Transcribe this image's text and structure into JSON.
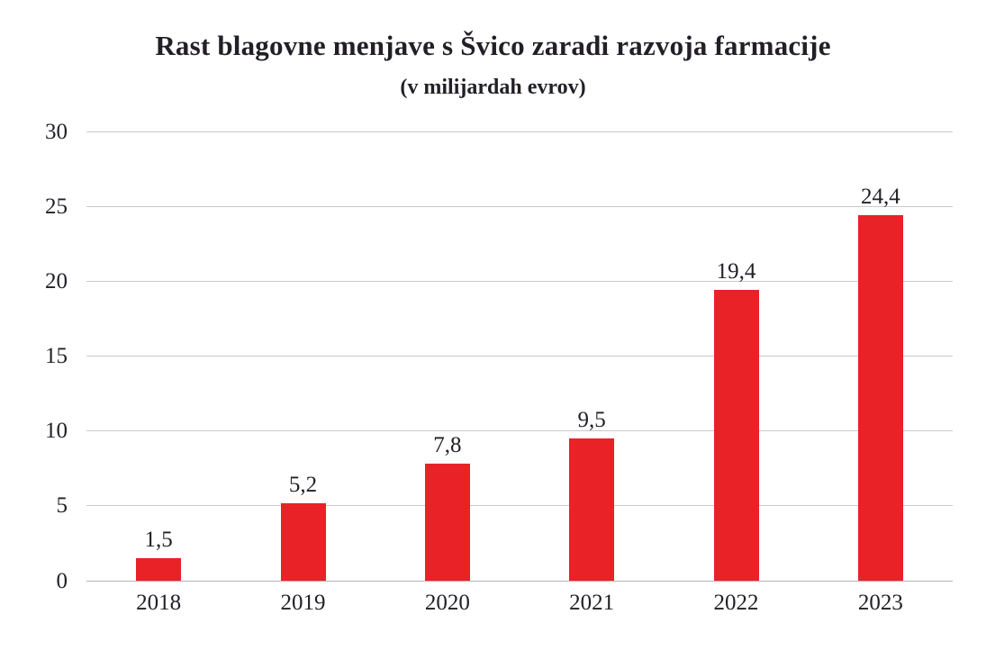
{
  "chart_data": {
    "type": "bar",
    "title": "Rast blagovne menjave s Švico zaradi razvoja farmacije",
    "subtitle": "(v milijardah evrov)",
    "categories": [
      "2018",
      "2019",
      "2020",
      "2021",
      "2022",
      "2023"
    ],
    "values": [
      1.5,
      5.2,
      7.8,
      9.5,
      19.4,
      24.4
    ],
    "value_labels": [
      "1,5",
      "5,2",
      "7,8",
      "9,5",
      "19,4",
      "24,4"
    ],
    "xlabel": "",
    "ylabel": "",
    "ylim": [
      0,
      30
    ],
    "yticks": [
      0,
      5,
      10,
      15,
      20,
      25,
      30
    ],
    "grid": "horizontal",
    "legend": "none",
    "colors": {
      "bar": "#e92228",
      "gridline": "#c9c9c9",
      "baseline": "#b3b3b3",
      "text": "#221f26",
      "background": "#ffffff"
    }
  }
}
